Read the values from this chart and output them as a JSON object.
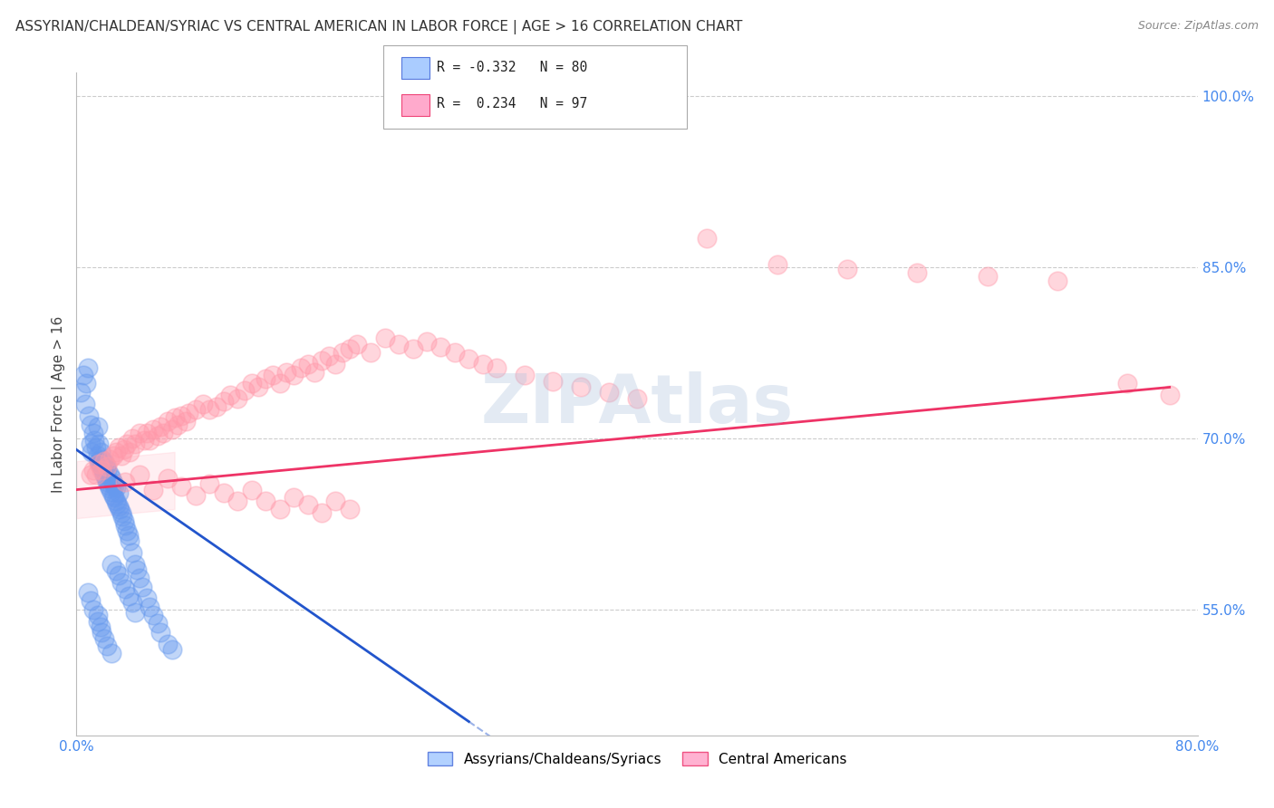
{
  "title": "ASSYRIAN/CHALDEAN/SYRIAC VS CENTRAL AMERICAN IN LABOR FORCE | AGE > 16 CORRELATION CHART",
  "source": "Source: ZipAtlas.com",
  "ylabel": "In Labor Force | Age > 16",
  "xlim": [
    0.0,
    0.8
  ],
  "ylim": [
    0.44,
    1.02
  ],
  "xticks": [
    0.0,
    0.1,
    0.2,
    0.3,
    0.4,
    0.5,
    0.6,
    0.7,
    0.8
  ],
  "xticklabels": [
    "0.0%",
    "",
    "",
    "",
    "",
    "",
    "",
    "",
    "80.0%"
  ],
  "yticks_right": [
    0.55,
    0.7,
    0.85,
    1.0
  ],
  "yticklabels_right": [
    "55.0%",
    "70.0%",
    "85.0%",
    "100.0%"
  ],
  "watermark": "ZIPAtlas",
  "blue_color": "#6699EE",
  "pink_color": "#FF99AA",
  "blue_line_color": "#2255CC",
  "pink_line_color": "#EE3366",
  "grid_color": "#CCCCCC",
  "blue_intercept": 0.69,
  "blue_slope": -0.85,
  "pink_intercept": 0.655,
  "pink_slope": 0.115,
  "blue_scatter_x": [
    0.003,
    0.005,
    0.006,
    0.007,
    0.008,
    0.009,
    0.01,
    0.01,
    0.011,
    0.012,
    0.013,
    0.014,
    0.015,
    0.015,
    0.016,
    0.016,
    0.017,
    0.017,
    0.018,
    0.018,
    0.019,
    0.019,
    0.02,
    0.02,
    0.021,
    0.021,
    0.022,
    0.022,
    0.023,
    0.024,
    0.024,
    0.025,
    0.025,
    0.026,
    0.026,
    0.027,
    0.027,
    0.028,
    0.028,
    0.029,
    0.03,
    0.03,
    0.031,
    0.032,
    0.033,
    0.034,
    0.035,
    0.036,
    0.037,
    0.038,
    0.04,
    0.042,
    0.043,
    0.045,
    0.047,
    0.05,
    0.052,
    0.055,
    0.058,
    0.06,
    0.065,
    0.068,
    0.008,
    0.01,
    0.012,
    0.015,
    0.015,
    0.017,
    0.018,
    0.02,
    0.022,
    0.025,
    0.025,
    0.028,
    0.03,
    0.032,
    0.035,
    0.037,
    0.04,
    0.042
  ],
  "blue_scatter_y": [
    0.74,
    0.755,
    0.73,
    0.748,
    0.762,
    0.72,
    0.695,
    0.712,
    0.688,
    0.705,
    0.698,
    0.692,
    0.685,
    0.71,
    0.68,
    0.695,
    0.678,
    0.688,
    0.675,
    0.682,
    0.672,
    0.68,
    0.668,
    0.678,
    0.665,
    0.675,
    0.662,
    0.672,
    0.659,
    0.656,
    0.668,
    0.653,
    0.665,
    0.65,
    0.661,
    0.648,
    0.659,
    0.645,
    0.657,
    0.643,
    0.64,
    0.652,
    0.638,
    0.635,
    0.632,
    0.628,
    0.624,
    0.619,
    0.615,
    0.61,
    0.6,
    0.59,
    0.585,
    0.578,
    0.57,
    0.56,
    0.552,
    0.545,
    0.538,
    0.53,
    0.52,
    0.515,
    0.565,
    0.558,
    0.55,
    0.545,
    0.54,
    0.535,
    0.53,
    0.525,
    0.518,
    0.512,
    0.59,
    0.584,
    0.58,
    0.574,
    0.568,
    0.562,
    0.556,
    0.548
  ],
  "pink_scatter_x": [
    0.01,
    0.012,
    0.014,
    0.016,
    0.018,
    0.02,
    0.022,
    0.024,
    0.026,
    0.028,
    0.03,
    0.032,
    0.034,
    0.036,
    0.038,
    0.04,
    0.042,
    0.045,
    0.048,
    0.05,
    0.052,
    0.055,
    0.058,
    0.06,
    0.062,
    0.065,
    0.068,
    0.07,
    0.072,
    0.075,
    0.078,
    0.08,
    0.085,
    0.09,
    0.095,
    0.1,
    0.105,
    0.11,
    0.115,
    0.12,
    0.125,
    0.13,
    0.135,
    0.14,
    0.145,
    0.15,
    0.155,
    0.16,
    0.165,
    0.17,
    0.175,
    0.18,
    0.185,
    0.19,
    0.195,
    0.2,
    0.21,
    0.22,
    0.23,
    0.24,
    0.25,
    0.26,
    0.27,
    0.28,
    0.29,
    0.3,
    0.32,
    0.34,
    0.36,
    0.38,
    0.4,
    0.45,
    0.5,
    0.55,
    0.6,
    0.65,
    0.7,
    0.75,
    0.78,
    0.035,
    0.045,
    0.055,
    0.065,
    0.075,
    0.085,
    0.095,
    0.105,
    0.115,
    0.125,
    0.135,
    0.145,
    0.155,
    0.165,
    0.175,
    0.185,
    0.195
  ],
  "pink_scatter_y": [
    0.668,
    0.672,
    0.668,
    0.678,
    0.672,
    0.68,
    0.675,
    0.682,
    0.685,
    0.688,
    0.692,
    0.685,
    0.69,
    0.695,
    0.688,
    0.7,
    0.695,
    0.705,
    0.698,
    0.705,
    0.698,
    0.708,
    0.702,
    0.71,
    0.705,
    0.715,
    0.708,
    0.718,
    0.712,
    0.72,
    0.715,
    0.722,
    0.725,
    0.73,
    0.725,
    0.728,
    0.732,
    0.738,
    0.735,
    0.742,
    0.748,
    0.745,
    0.752,
    0.755,
    0.748,
    0.758,
    0.755,
    0.762,
    0.765,
    0.758,
    0.768,
    0.772,
    0.765,
    0.775,
    0.778,
    0.782,
    0.775,
    0.788,
    0.782,
    0.778,
    0.785,
    0.78,
    0.775,
    0.77,
    0.765,
    0.762,
    0.755,
    0.75,
    0.745,
    0.74,
    0.735,
    0.875,
    0.852,
    0.848,
    0.845,
    0.842,
    0.838,
    0.748,
    0.738,
    0.662,
    0.668,
    0.655,
    0.665,
    0.658,
    0.65,
    0.66,
    0.652,
    0.645,
    0.655,
    0.645,
    0.638,
    0.648,
    0.642,
    0.635,
    0.645,
    0.638
  ]
}
